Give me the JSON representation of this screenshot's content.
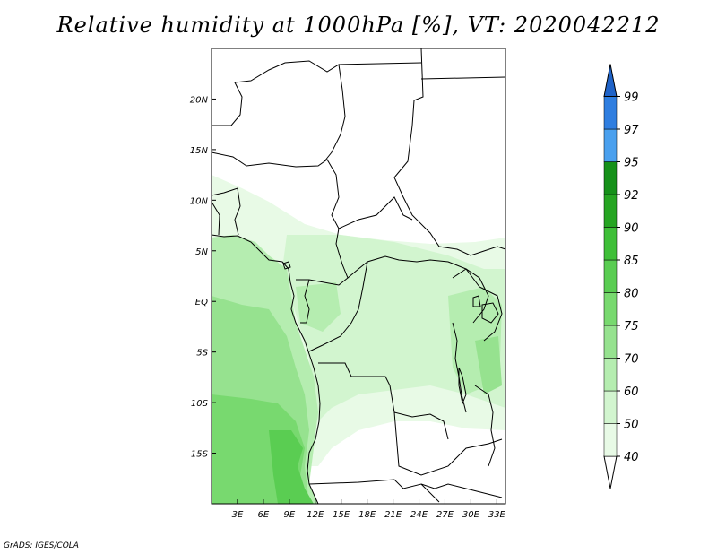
{
  "title": "Relative humidity at 1000hPa [%], VT: 2020042212",
  "credit": "GrADS: IGES/COLA",
  "map": {
    "lon_range": [
      0,
      34
    ],
    "lat_range": [
      -20,
      25
    ],
    "lon_ticks": [
      {
        "value": 3,
        "label": "3E"
      },
      {
        "value": 6,
        "label": "6E"
      },
      {
        "value": 9,
        "label": "9E"
      },
      {
        "value": 12,
        "label": "12E"
      },
      {
        "value": 15,
        "label": "15E"
      },
      {
        "value": 18,
        "label": "18E"
      },
      {
        "value": 21,
        "label": "21E"
      },
      {
        "value": 24,
        "label": "24E"
      },
      {
        "value": 27,
        "label": "27E"
      },
      {
        "value": 30,
        "label": "30E"
      },
      {
        "value": 33,
        "label": "33E"
      }
    ],
    "lat_ticks": [
      {
        "value": 20,
        "label": "20N"
      },
      {
        "value": 15,
        "label": "15N"
      },
      {
        "value": 10,
        "label": "10N"
      },
      {
        "value": 5,
        "label": "5N"
      },
      {
        "value": 0,
        "label": "EQ"
      },
      {
        "value": -5,
        "label": "5S"
      },
      {
        "value": -10,
        "label": "10S"
      },
      {
        "value": -15,
        "label": "15S"
      }
    ]
  },
  "colorbar": {
    "levels": [
      {
        "label": "40",
        "color": "#ffffff"
      },
      {
        "label": "50",
        "color": "#e8fae6"
      },
      {
        "label": "60",
        "color": "#d2f5cf"
      },
      {
        "label": "70",
        "color": "#b5edb0"
      },
      {
        "label": "75",
        "color": "#96e28f"
      },
      {
        "label": "80",
        "color": "#78d96f"
      },
      {
        "label": "85",
        "color": "#5acd52"
      },
      {
        "label": "90",
        "color": "#3fbf38"
      },
      {
        "label": "92",
        "color": "#26a522"
      },
      {
        "label": "95",
        "color": "#16911a"
      },
      {
        "label": "97",
        "color": "#4aa0ee"
      },
      {
        "label": "99",
        "color": "#2f7ee0"
      }
    ],
    "top_color": "#1f63c8",
    "bottom_color": "#ffffff"
  }
}
